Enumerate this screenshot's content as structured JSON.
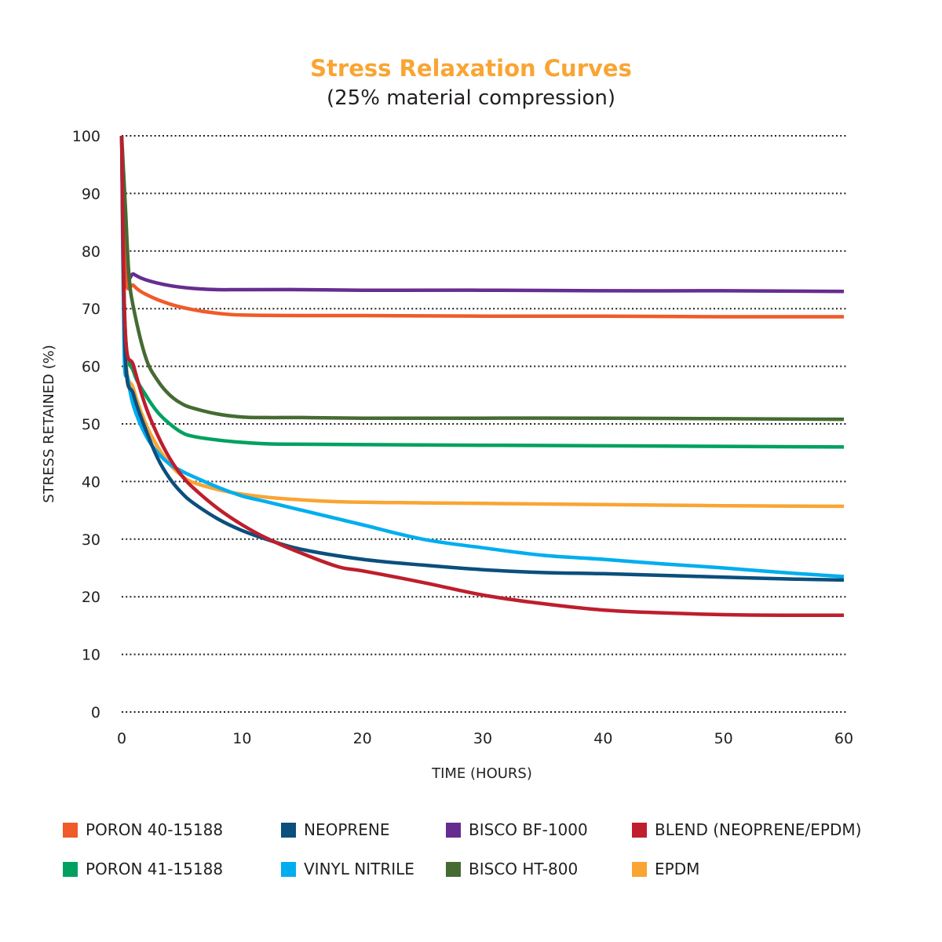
{
  "chart_data": {
    "type": "line",
    "title": "Stress Relaxation Curves",
    "subtitle": "(25% material compression)",
    "xlabel": "TIME (HOURS)",
    "ylabel": "STRESS RETAINED (%)",
    "xlim": [
      0,
      60
    ],
    "ylim": [
      0,
      100
    ],
    "xticks": [
      "0",
      "10",
      "20",
      "30",
      "40",
      "50",
      "60"
    ],
    "yticks": [
      "0",
      "10",
      "20",
      "30",
      "40",
      "50",
      "60",
      "70",
      "80",
      "90",
      "100"
    ],
    "grid": "horizontal-dotted",
    "legend_position": "bottom",
    "series": [
      {
        "name": "PORON 40-15188",
        "color": "#f15a29",
        "x": [
          0,
          0.3,
          1,
          2,
          4,
          6,
          8,
          10,
          15,
          20,
          30,
          40,
          50,
          60
        ],
        "y": [
          100,
          76,
          74,
          72.5,
          70.8,
          69.8,
          69.2,
          68.9,
          68.8,
          68.8,
          68.7,
          68.7,
          68.6,
          68.6
        ]
      },
      {
        "name": "PORON 41-15188",
        "color": "#00a160",
        "x": [
          0,
          0.3,
          1,
          2,
          3,
          4,
          5,
          6,
          8,
          10,
          13,
          20,
          30,
          40,
          50,
          60
        ],
        "y": [
          100,
          66,
          59,
          55,
          52,
          50,
          48.5,
          47.8,
          47.2,
          46.8,
          46.5,
          46.4,
          46.3,
          46.2,
          46.1,
          46.0
        ]
      },
      {
        "name": "NEOPRENE",
        "color": "#0b4f7c",
        "x": [
          0,
          0.3,
          1,
          2,
          3,
          4,
          5,
          6,
          8,
          10,
          12,
          15,
          20,
          25,
          30,
          35,
          40,
          45,
          50,
          55,
          60
        ],
        "y": [
          100,
          62,
          55,
          49,
          44,
          40.5,
          38,
          36.2,
          33.5,
          31.5,
          30,
          28.2,
          26.5,
          25.5,
          24.7,
          24.2,
          24,
          23.7,
          23.4,
          23.1,
          22.9
        ]
      },
      {
        "name": "VINYL NITRILE",
        "color": "#00aeef",
        "x": [
          0,
          0.2,
          0.5,
          1,
          2,
          3,
          4,
          5,
          6,
          8,
          10,
          12,
          15,
          20,
          25,
          30,
          35,
          40,
          45,
          50,
          55,
          60
        ],
        "y": [
          100,
          63,
          58,
          53,
          48,
          45,
          43,
          41.8,
          40.8,
          39,
          37.5,
          36.5,
          35,
          32.5,
          30,
          28.5,
          27.2,
          26.5,
          25.7,
          25,
          24.2,
          23.5
        ]
      },
      {
        "name": "BISCO BF-1000",
        "color": "#662d91",
        "x": [
          0,
          0.3,
          1,
          2,
          4,
          6,
          8,
          10,
          15,
          20,
          30,
          40,
          50,
          60
        ],
        "y": [
          100,
          77,
          76,
          75,
          74,
          73.5,
          73.3,
          73.3,
          73.3,
          73.2,
          73.2,
          73.1,
          73.1,
          73.0
        ]
      },
      {
        "name": "BISCO HT-800",
        "color": "#456b32",
        "x": [
          0,
          0.3,
          0.6,
          1,
          2,
          3,
          4,
          5,
          6,
          8,
          10,
          12,
          15,
          20,
          30,
          40,
          50,
          60
        ],
        "y": [
          100,
          88,
          76,
          70,
          61.5,
          57.5,
          55,
          53.5,
          52.7,
          51.7,
          51.2,
          51.1,
          51.1,
          51.0,
          51.0,
          51.0,
          50.9,
          50.8
        ]
      },
      {
        "name": "BLEND (NEOPRENE/EPDM)",
        "color": "#be1e2d",
        "x": [
          0,
          0.3,
          1,
          2,
          3,
          4,
          5,
          6,
          8,
          10,
          12,
          15,
          18,
          20,
          25,
          30,
          35,
          40,
          45,
          50,
          55,
          60
        ],
        "y": [
          100,
          66,
          60,
          53,
          48,
          44,
          41,
          38.8,
          35.3,
          32.5,
          30.2,
          27.5,
          25.2,
          24.5,
          22.5,
          20.3,
          18.8,
          17.7,
          17.2,
          16.9,
          16.8,
          16.8
        ]
      },
      {
        "name": "EPDM",
        "color": "#f9a533",
        "x": [
          0,
          0.3,
          1,
          2,
          3,
          4,
          5,
          6,
          8,
          10,
          13,
          18,
          25,
          30,
          40,
          50,
          60
        ],
        "y": [
          100,
          63,
          56,
          50,
          46,
          43,
          41,
          39.8,
          38.6,
          37.8,
          37.1,
          36.5,
          36.3,
          36.2,
          36.0,
          35.8,
          35.7
        ]
      }
    ]
  },
  "legend": {
    "items": [
      {
        "label": "PORON 40-15188",
        "color": "#f15a29"
      },
      {
        "label": "NEOPRENE",
        "color": "#0b4f7c"
      },
      {
        "label": "BISCO BF-1000",
        "color": "#662d91"
      },
      {
        "label": "BLEND (NEOPRENE/EPDM)",
        "color": "#be1e2d"
      },
      {
        "label": "PORON 41-15188",
        "color": "#00a160"
      },
      {
        "label": "VINYL NITRILE",
        "color": "#00aeef"
      },
      {
        "label": "BISCO HT-800",
        "color": "#456b32"
      },
      {
        "label": "EPDM",
        "color": "#f9a533"
      }
    ]
  }
}
